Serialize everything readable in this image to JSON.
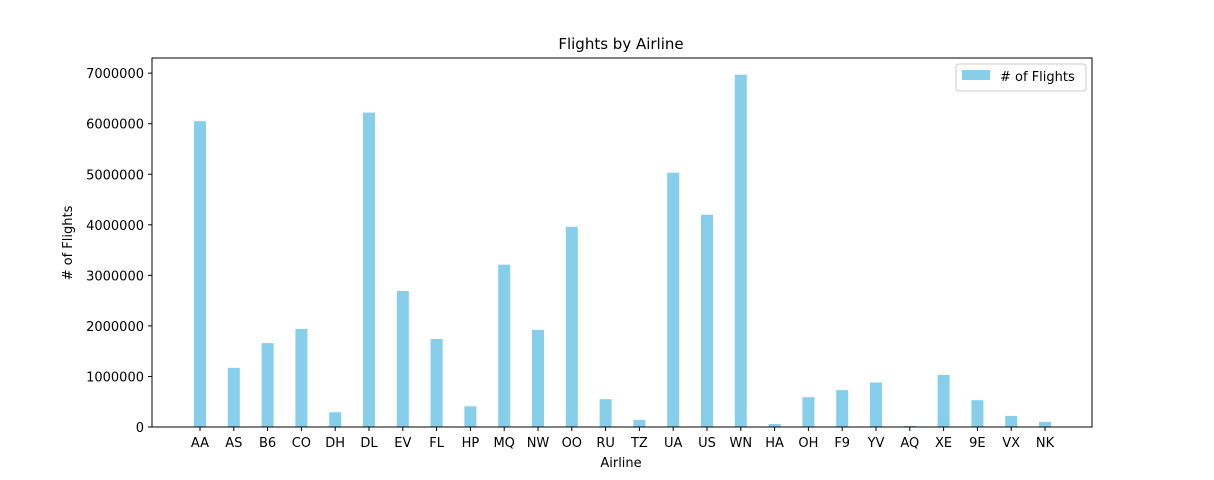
{
  "chart_data": {
    "type": "bar",
    "title": "Flights by Airline",
    "xlabel": "Airline",
    "ylabel": "# of Flights",
    "ylim": [
      0,
      7300000
    ],
    "yticks": [
      0,
      1000000,
      2000000,
      3000000,
      4000000,
      5000000,
      6000000,
      7000000
    ],
    "grid": false,
    "legend_position": "top-right",
    "categories": [
      "AA",
      "AS",
      "B6",
      "CO",
      "DH",
      "DL",
      "EV",
      "FL",
      "HP",
      "MQ",
      "NW",
      "OO",
      "RU",
      "TZ",
      "UA",
      "US",
      "WN",
      "HA",
      "OH",
      "F9",
      "YV",
      "AQ",
      "XE",
      "9E",
      "VX",
      "NK"
    ],
    "series": [
      {
        "name": "# of Flights",
        "color": "#87ceeb",
        "values": [
          6050000,
          1170000,
          1660000,
          1940000,
          290000,
          6220000,
          2690000,
          1740000,
          410000,
          3210000,
          1920000,
          3960000,
          550000,
          140000,
          5030000,
          4200000,
          6970000,
          60000,
          590000,
          730000,
          880000,
          20000,
          1030000,
          530000,
          220000,
          100000
        ]
      }
    ]
  }
}
